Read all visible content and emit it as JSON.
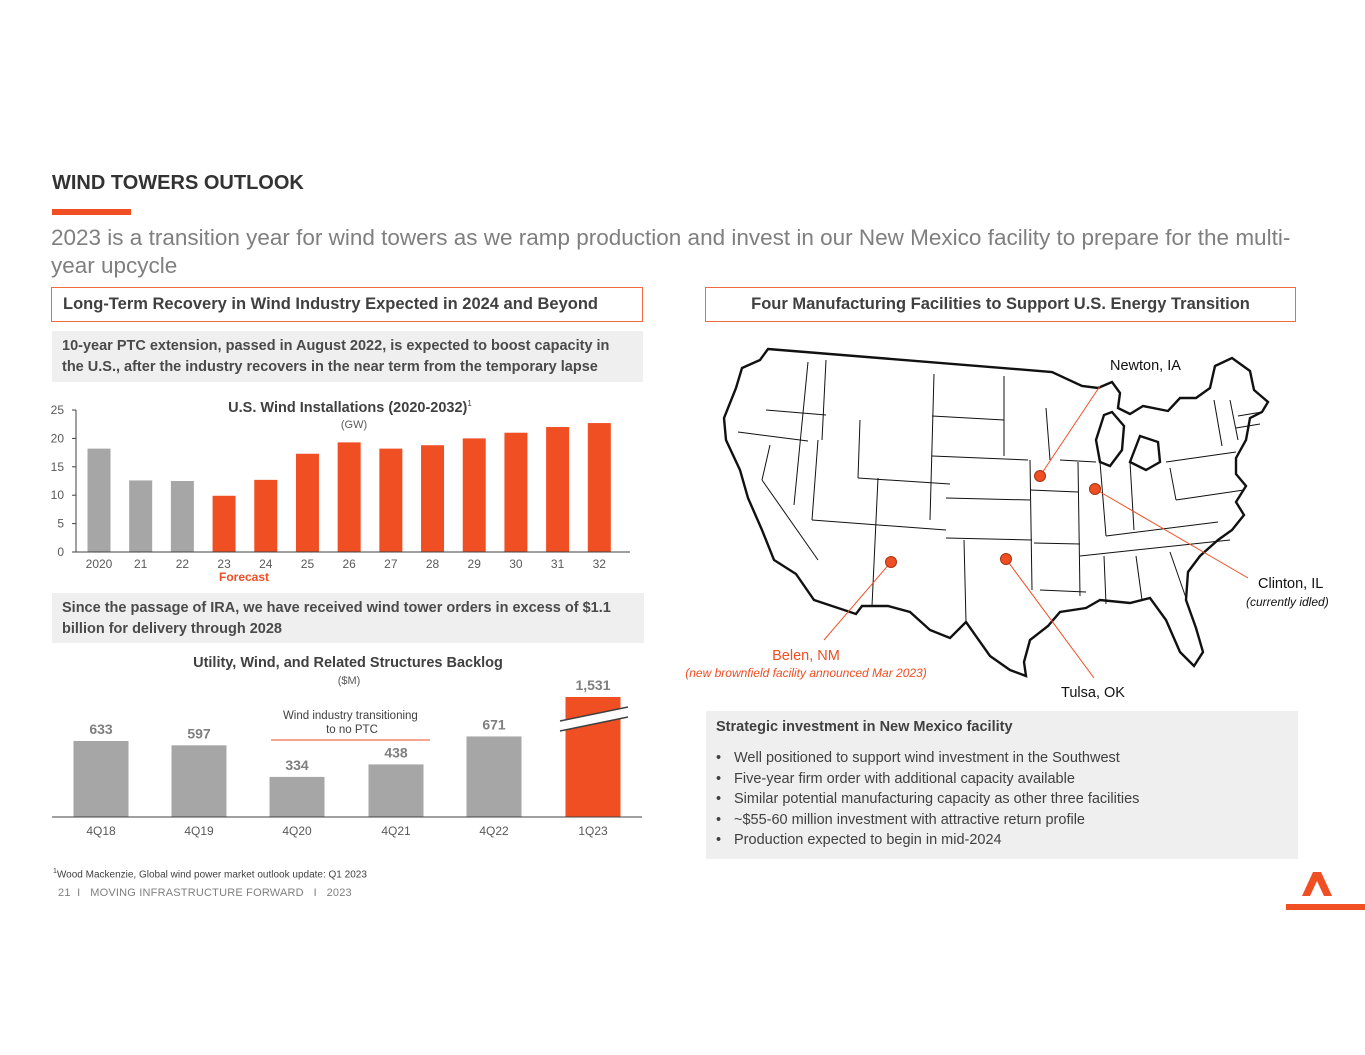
{
  "header": {
    "title": "WIND TOWERS OUTLOOK",
    "subtitle": "2023 is a transition year for wind towers as we ramp production and invest in our New Mexico facility to prepare for the multi-year upcycle"
  },
  "left": {
    "heading": "Long-Term Recovery in Wind Industry Expected in 2024 and Beyond",
    "ptc_note": "10-year PTC extension, passed in August 2022, is expected to boost capacity in the U.S., after the industry recovers in the near term from the temporary lapse",
    "ira_note": "Since the passage of IRA, we have received wind tower orders in excess of $1.1 billion for delivery through 2028"
  },
  "right": {
    "heading": "Four Manufacturing Facilities to Support U.S. Energy Transition",
    "facilities": [
      {
        "name": "Newton, IA",
        "note": ""
      },
      {
        "name": "Clinton, IL",
        "note": "(currently idled)"
      },
      {
        "name": "Belen, NM",
        "note": "(new brownfield facility announced Mar 2023)"
      },
      {
        "name": "Tulsa, OK",
        "note": ""
      }
    ],
    "strategy": {
      "title": "Strategic investment in New Mexico facility",
      "bullets": [
        "Well positioned to support wind investment in the Southwest",
        "Five-year firm order with additional capacity available",
        "Similar potential manufacturing capacity as other three facilities",
        "~$55-60 million investment with attractive return profile",
        "Production expected to begin in mid-2024"
      ]
    }
  },
  "chart_data": [
    {
      "type": "bar",
      "title": "U.S. Wind Installations (2020-2032)",
      "title_superscript": "1",
      "unit": "(GW)",
      "categories": [
        "2020",
        "21",
        "22",
        "23",
        "24",
        "25",
        "26",
        "27",
        "28",
        "29",
        "30",
        "31",
        "32"
      ],
      "values": [
        18.2,
        12.6,
        12.5,
        9.9,
        12.7,
        17.3,
        19.3,
        18.2,
        18.8,
        20.0,
        21.0,
        22.0,
        22.7
      ],
      "forecast_start_index": 3,
      "forecast_label": "Forecast",
      "yticks": [
        "0",
        "5",
        "10",
        "15",
        "20",
        "25"
      ],
      "ylim": [
        0,
        25
      ],
      "colors": {
        "actual": "#a6a6a6",
        "forecast": "#f04e23"
      }
    },
    {
      "type": "bar",
      "title": "Utility, Wind, and Related Structures Backlog",
      "unit": "($M)",
      "categories": [
        "4Q18",
        "4Q19",
        "4Q20",
        "4Q21",
        "4Q22",
        "1Q23"
      ],
      "values": [
        633,
        597,
        334,
        438,
        671,
        1531
      ],
      "labels": [
        "633",
        "597",
        "334",
        "438",
        "671",
        "1,531"
      ],
      "annotation": "Wind industry transitioning to no PTC",
      "annotation_lines": [
        "Wind industry transitioning",
        "to no PTC"
      ],
      "axis_break_index": 5,
      "colors": {
        "default": "#a6a6a6",
        "highlight": "#f04e23"
      }
    }
  ],
  "footer": {
    "footnote_marker": "1",
    "footnote": "Wood Mackenzie, Global wind power market outlook update: Q1 2023",
    "page": "21",
    "sep": "I",
    "tagline": "MOVING INFRASTRUCTURE FORWARD",
    "year": "2023"
  },
  "colors": {
    "accent": "#f04e23",
    "grey_bar": "#a6a6a6",
    "box_bg": "#efefef"
  }
}
